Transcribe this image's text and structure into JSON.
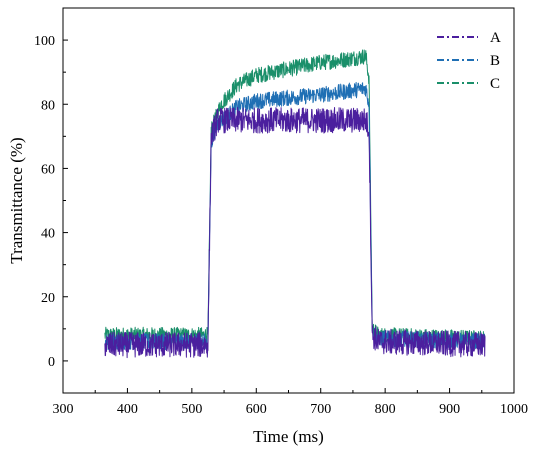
{
  "chart_data": {
    "type": "line",
    "xlabel": "Time (ms)",
    "ylabel": "Transmittance (%)",
    "xlim": [
      300,
      1000
    ],
    "ylim": [
      -10,
      110
    ],
    "xticks": [
      300,
      400,
      500,
      600,
      700,
      800,
      900,
      1000
    ],
    "yticks": [
      0,
      20,
      40,
      60,
      80,
      100
    ],
    "grid": false,
    "legend_position": "top-right",
    "time_range": [
      365,
      955
    ],
    "series": [
      {
        "name": "A",
        "color": "#4b1f9e",
        "points": [
          [
            365,
            5
          ],
          [
            525,
            5
          ],
          [
            530,
            70
          ],
          [
            540,
            75
          ],
          [
            600,
            75
          ],
          [
            700,
            75
          ],
          [
            770,
            75
          ],
          [
            775,
            72
          ],
          [
            780,
            8
          ],
          [
            790,
            6
          ],
          [
            955,
            5
          ]
        ],
        "noise": 4
      },
      {
        "name": "B",
        "color": "#1f6fb4",
        "points": [
          [
            365,
            6
          ],
          [
            525,
            6
          ],
          [
            530,
            68
          ],
          [
            540,
            74
          ],
          [
            570,
            79
          ],
          [
            600,
            81
          ],
          [
            650,
            82
          ],
          [
            700,
            83
          ],
          [
            740,
            84
          ],
          [
            770,
            85
          ],
          [
            775,
            80
          ],
          [
            780,
            9
          ],
          [
            790,
            7
          ],
          [
            955,
            6
          ]
        ],
        "noise": 2.5
      },
      {
        "name": "C",
        "color": "#1a8f6a",
        "points": [
          [
            365,
            8
          ],
          [
            525,
            8
          ],
          [
            530,
            72
          ],
          [
            545,
            80
          ],
          [
            570,
            86
          ],
          [
            600,
            89
          ],
          [
            650,
            91
          ],
          [
            700,
            93
          ],
          [
            740,
            94
          ],
          [
            770,
            95
          ],
          [
            775,
            88
          ],
          [
            780,
            10
          ],
          [
            790,
            8
          ],
          [
            955,
            7
          ]
        ],
        "noise": 2.5
      }
    ]
  }
}
